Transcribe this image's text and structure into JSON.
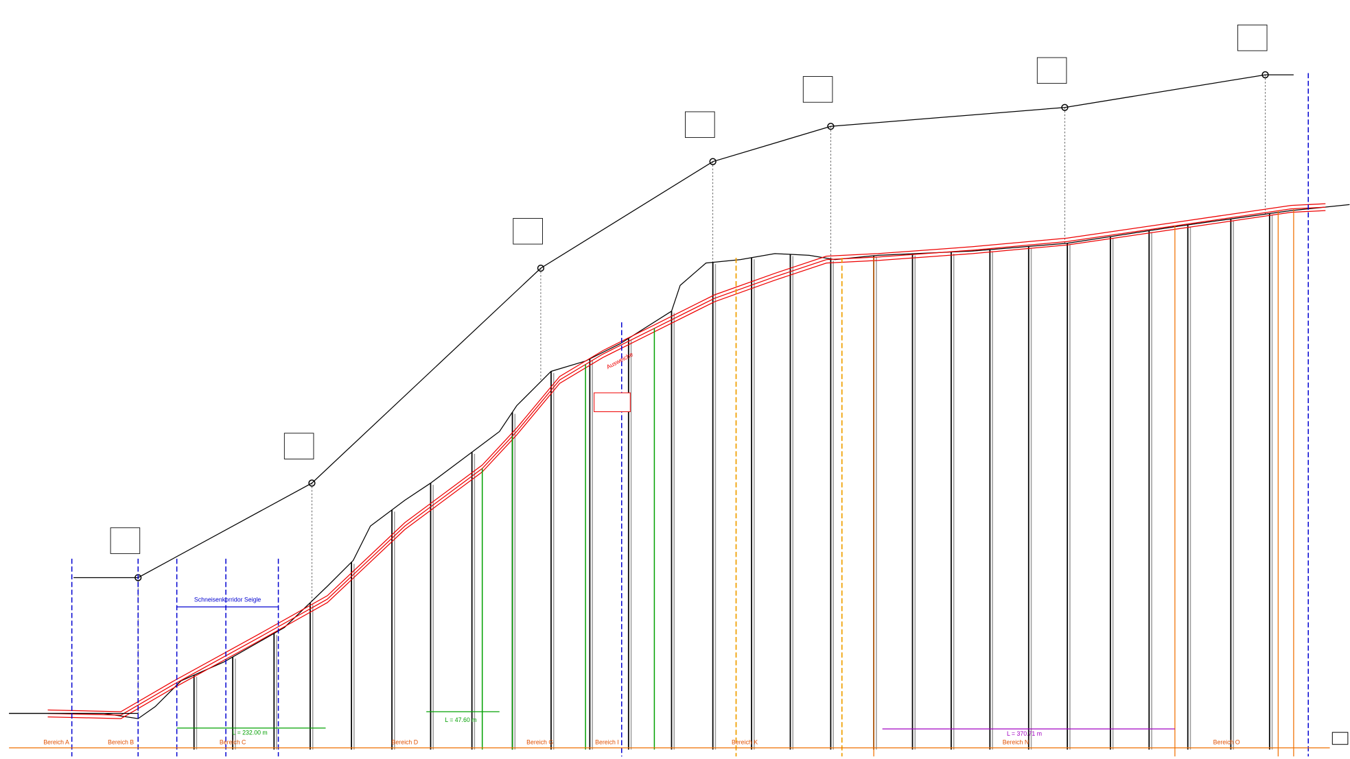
{
  "labels": {
    "corridor": "Schneisenkorridor Seigle",
    "passing": "Ausweiche"
  },
  "sections": [
    {
      "label": "Bereich A"
    },
    {
      "label": "Bereich B"
    },
    {
      "label": "Bereich C"
    },
    {
      "label": "Bereich D"
    },
    {
      "label": "Bereich G"
    },
    {
      "label": "Bereich I"
    },
    {
      "label": "Bereich K"
    },
    {
      "label": "Bereich N"
    },
    {
      "label": "Bereich O"
    }
  ],
  "dimensions": [
    {
      "label": "L = 232.00 m"
    },
    {
      "label": "L = 47.60 m"
    },
    {
      "label": "L = 370.71 m"
    }
  ]
}
